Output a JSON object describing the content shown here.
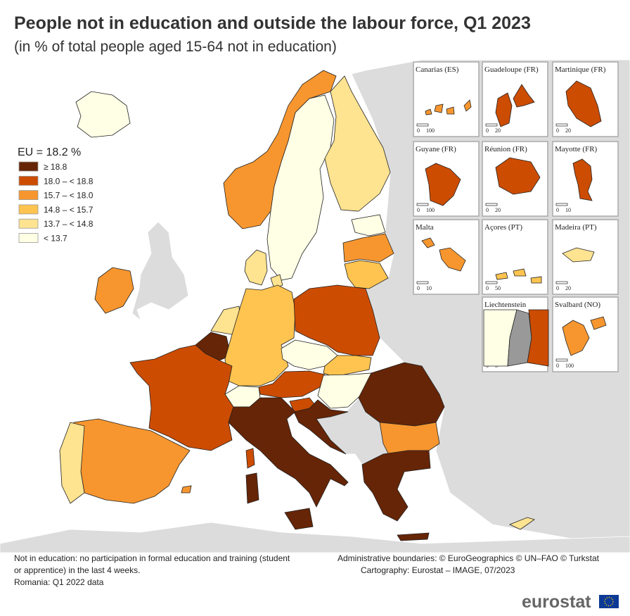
{
  "header": {
    "title": "People not in education and outside the labour force, Q1 2023",
    "subtitle": "(in % of total people aged 15-64 not in education)"
  },
  "legend": {
    "title": "EU = 18.2 %",
    "classes": [
      {
        "label": "≥ 18.8",
        "color": "#662506"
      },
      {
        "label": "18.0 – < 18.8",
        "color": "#cc4c02"
      },
      {
        "label": "15.7 – < 18.0",
        "color": "#f7962e"
      },
      {
        "label": "14.8 – < 15.7",
        "color": "#fec44f"
      },
      {
        "label": "13.7 – < 14.8",
        "color": "#fee391"
      },
      {
        "label": "< 13.7",
        "color": "#ffffe5"
      }
    ]
  },
  "insets": [
    {
      "name": "Canarias (ES)",
      "scale": [
        "0",
        "100"
      ]
    },
    {
      "name": "Guadeloupe (FR)",
      "scale": [
        "0",
        "20"
      ]
    },
    {
      "name": "Martinique (FR)",
      "scale": [
        "0",
        "20"
      ]
    },
    {
      "name": "Guyane (FR)",
      "scale": [
        "0",
        "100"
      ]
    },
    {
      "name": "Réunion (FR)",
      "scale": [
        "0",
        "20"
      ]
    },
    {
      "name": "Mayotte (FR)",
      "scale": [
        "0",
        "10"
      ]
    },
    {
      "name": "Malta",
      "scale": [
        "0",
        "10"
      ]
    },
    {
      "name": "Açores (PT)",
      "scale": [
        "0",
        "50"
      ]
    },
    {
      "name": "Madeira (PT)",
      "scale": [
        "0",
        "20"
      ]
    },
    {
      "name": "Liechtenstein",
      "scale": [
        "0",
        "5"
      ]
    },
    {
      "name": "Svalbard (NO)",
      "scale": [
        "0",
        "100"
      ]
    }
  ],
  "footnotes": [
    "Not in education: no participation in formal education and training (student",
    "or apprentice) in the last 4 weeks.",
    "Romania: Q1 2022 data"
  ],
  "credits": [
    "Administrative boundaries: © EuroGeographics © UN–FAO © Turkstat",
    "Cartography: Eurostat – IMAGE, 07/2023"
  ],
  "logo": "eurostat"
}
